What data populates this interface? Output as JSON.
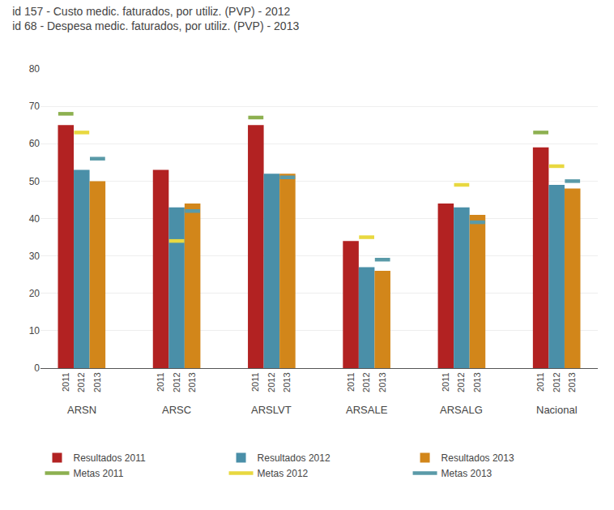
{
  "chart_data": {
    "type": "bar",
    "title": "id 157 - Custo medic. faturados, por utiliz. (PVP) - 2012\nid 68 - Despesa medic. faturados, por utiliz. (PVP) - 2013",
    "categories": [
      "ARSN",
      "ARSC",
      "ARSLVT",
      "ARSALE",
      "ARSALG",
      "Nacional"
    ],
    "subcategories": [
      "2011",
      "2012",
      "2013"
    ],
    "series": [
      {
        "name": "Resultados 2011",
        "type": "bar",
        "subcategory": "2011",
        "color": "#b22222",
        "values": [
          65,
          53,
          65,
          34,
          44,
          59
        ]
      },
      {
        "name": "Resultados 2012",
        "type": "bar",
        "subcategory": "2012",
        "color": "#4a8fa8",
        "values": [
          53,
          43,
          52,
          27,
          43,
          49
        ]
      },
      {
        "name": "Resultados 2013",
        "type": "bar",
        "subcategory": "2013",
        "color": "#d2861a",
        "values": [
          50,
          44,
          52,
          26,
          41,
          48
        ]
      },
      {
        "name": "Metas 2011",
        "type": "line",
        "subcategory": "2011",
        "color": "#8db050",
        "values": [
          68,
          null,
          67,
          null,
          null,
          63
        ]
      },
      {
        "name": "Metas 2012",
        "type": "line",
        "subcategory": "2012",
        "color": "#e8d840",
        "values": [
          63,
          34,
          null,
          35,
          49,
          54
        ]
      },
      {
        "name": "Metas 2013",
        "type": "line",
        "subcategory": "2013",
        "color": "#5a9aa8",
        "values": [
          56,
          42,
          51,
          29,
          39,
          50
        ]
      }
    ],
    "ylim": [
      0,
      80
    ],
    "yticks": [
      0,
      10,
      20,
      30,
      40,
      50,
      60,
      70,
      80
    ],
    "grid": true,
    "legend": "bottom"
  }
}
